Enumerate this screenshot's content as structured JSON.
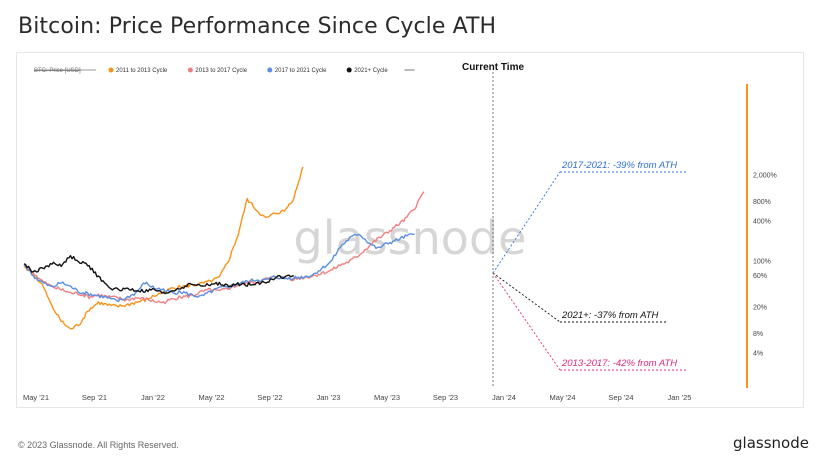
{
  "title": "Bitcoin: Price Performance Since Cycle ATH",
  "footer": {
    "copyright": "© 2023 Glassnode. All Rights Reserved.",
    "logo": "glassnode"
  },
  "watermark": "glassnode",
  "current_time_label": "Current Time",
  "legend": [
    {
      "label": "BTC: Price [USD]",
      "color": "#777777",
      "style": "strike"
    },
    {
      "label": "2011 to 2013 Cycle",
      "color": "#f7931a"
    },
    {
      "label": "2013 to 2017 Cycle",
      "color": "#f08080"
    },
    {
      "label": "2017 to 2021 Cycle",
      "color": "#5b8fe0"
    },
    {
      "label": "2021+ Cycle",
      "color": "#111111"
    }
  ],
  "annotations": [
    {
      "text": "2017-2021: -39% from ATH",
      "color": "#2f6fd6"
    },
    {
      "text": "2021+: -37% from ATH",
      "color": "#111111"
    },
    {
      "text": "2013-2017: -42% from ATH",
      "color": "#e0287a"
    }
  ],
  "chart_data": {
    "type": "line",
    "title": "Bitcoin: Price Performance Since Cycle ATH",
    "x_ticks": [
      "May '21",
      "Sep '21",
      "Jan '22",
      "May '22",
      "Sep '22",
      "Jan '23",
      "May '23",
      "Sep '23",
      "Jan '24",
      "May '24",
      "Sep '24",
      "Jan '25"
    ],
    "y_ticks": [
      "2,000%",
      "800%",
      "400%",
      "100%",
      "60%",
      "20%",
      "8%",
      "4%"
    ],
    "y_scale": "log",
    "current_time_index": 30,
    "series": [
      {
        "name": "2011 to 2013 Cycle",
        "color": "#f7931a",
        "values": [
          82,
          60,
          42,
          20,
          12,
          9,
          11,
          18,
          23,
          21,
          20,
          21,
          23,
          25,
          29,
          33,
          38,
          40,
          42,
          44,
          48,
          55,
          100,
          240,
          850,
          580,
          430,
          520,
          560,
          880,
          2600
        ]
      },
      {
        "name": "2013 to 2017 Cycle",
        "color": "#f08080",
        "values": [
          86,
          64,
          48,
          40,
          36,
          32,
          31,
          28,
          30,
          28,
          27,
          25,
          27,
          26,
          24,
          23,
          26,
          28,
          29,
          33,
          36,
          34,
          38,
          42,
          45,
          47,
          52,
          56,
          54,
          52,
          55,
          58,
          64,
          70,
          85,
          96,
          120,
          160,
          210,
          260,
          330,
          420,
          620,
          1100
        ]
      },
      {
        "name": "2017 to 2021 Cycle",
        "color": "#5b8fe0",
        "values": [
          88,
          58,
          46,
          39,
          46,
          40,
          33,
          31,
          29,
          27,
          24,
          27,
          32,
          46,
          38,
          36,
          32,
          33,
          30,
          28,
          33,
          38,
          40,
          44,
          48,
          51,
          50,
          57,
          53,
          55,
          56,
          60,
          75,
          95,
          160,
          215,
          255,
          190,
          150,
          180,
          200,
          230,
          250
        ]
      },
      {
        "name": "2021+ Cycle",
        "color": "#111111",
        "values": [
          90,
          66,
          76,
          90,
          84,
          115,
          96,
          82,
          56,
          40,
          36,
          37,
          35,
          34,
          36,
          31,
          35,
          39,
          44,
          41,
          43,
          45,
          40,
          44,
          43,
          46,
          46,
          55,
          57,
          58
        ]
      }
    ]
  }
}
